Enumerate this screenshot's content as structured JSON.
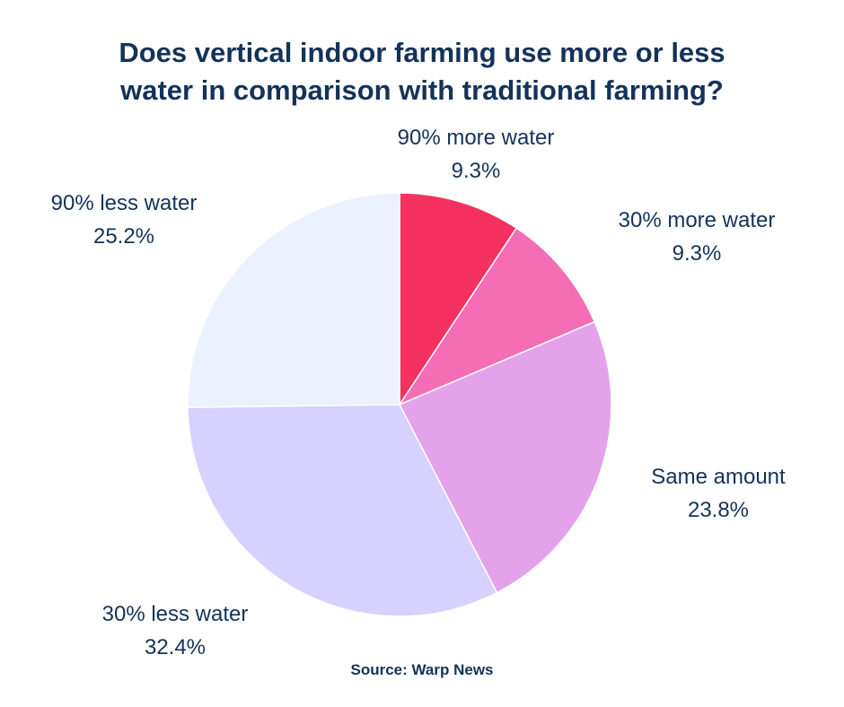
{
  "chart_data": {
    "type": "pie",
    "title_lines": [
      "Does vertical indoor farming use more or less",
      "water in comparison with traditional farming?"
    ],
    "slices": [
      {
        "label": "90% more water",
        "value": 9.3,
        "display": "9.3%",
        "color": "#f5325f"
      },
      {
        "label": "30% more water",
        "value": 9.3,
        "display": "9.3%",
        "color": "#f46db5"
      },
      {
        "label": "Same amount",
        "value": 23.8,
        "display": "23.8%",
        "color": "#e3a2ea"
      },
      {
        "label": "30% less water",
        "value": 32.4,
        "display": "32.4%",
        "color": "#d7d1ff"
      },
      {
        "label": "90% less water",
        "value": 25.2,
        "display": "25.2%",
        "color": "#ebf1fe"
      }
    ],
    "start_angle": "12 o'clock",
    "direction": "clockwise",
    "source": "Source:  Warp News"
  }
}
